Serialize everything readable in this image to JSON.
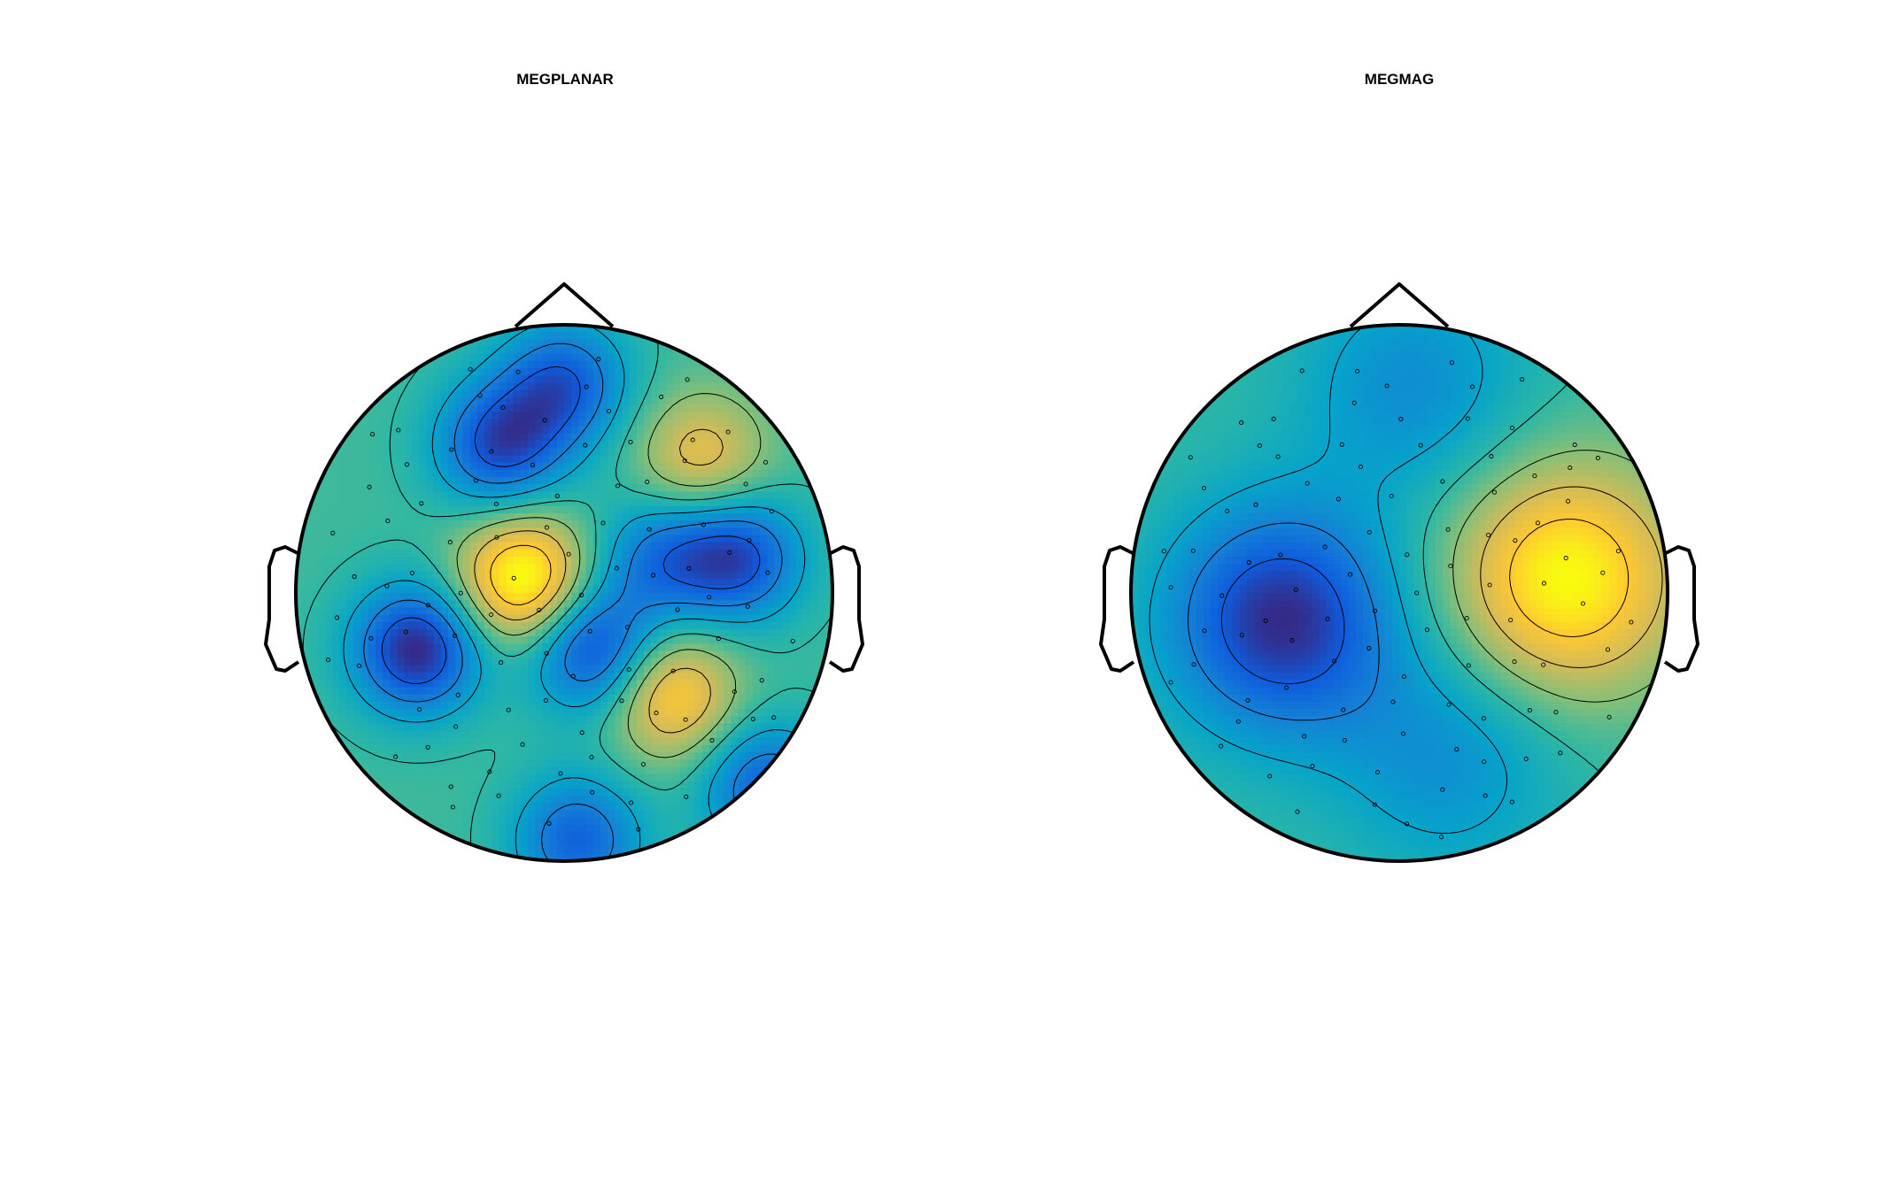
{
  "figure": {
    "panels": [
      "MEGPLANAR",
      "MEGMAG"
    ]
  },
  "colors": {
    "colormap": [
      "#352a87",
      "#0f5cdd",
      "#1481d6",
      "#06a4ca",
      "#2eb7a4",
      "#87bf77",
      "#d1bb59",
      "#fec832",
      "#f9fb0e"
    ],
    "outline": "#000000",
    "contour": "#000000"
  },
  "chart_data": [
    {
      "type": "heatmap",
      "subtype": "topographic-head-map",
      "title": "MEGPLANAR",
      "grid": false,
      "legend": "none",
      "markers": "sensor-dots",
      "features": [
        {
          "desc": "central-left vertical maximum",
          "x": -0.15,
          "y": 0.05,
          "value": 1.0
        },
        {
          "desc": "right-lower-central maximum",
          "x": 0.4,
          "y": -0.38,
          "value": 0.72
        },
        {
          "desc": "right-upper weak positive",
          "x": 0.51,
          "y": 0.5,
          "value": 0.55
        },
        {
          "desc": "left temporal minimum",
          "x": -0.55,
          "y": -0.21,
          "value": -1.0
        },
        {
          "desc": "central minimum",
          "x": 0.11,
          "y": -0.21,
          "value": -0.85
        },
        {
          "desc": "frontal-left minimum",
          "x": -0.24,
          "y": 0.55,
          "value": -0.82
        },
        {
          "desc": "frontal minimum",
          "x": 0.0,
          "y": 0.78,
          "value": -0.72
        },
        {
          "desc": "right minimum",
          "x": 0.65,
          "y": 0.13,
          "value": -0.8
        },
        {
          "desc": "right-central minimum",
          "x": 0.36,
          "y": 0.13,
          "value": -0.55
        },
        {
          "desc": "occipital minimum",
          "x": 0.05,
          "y": -0.92,
          "value": -0.7
        },
        {
          "desc": "right-posterior minimum",
          "x": 0.75,
          "y": -0.72,
          "value": -0.7
        }
      ]
    },
    {
      "type": "heatmap",
      "subtype": "topographic-head-map",
      "title": "MEGMAG",
      "grid": false,
      "legend": "none",
      "markers": "sensor-dots",
      "features": [
        {
          "desc": "right hemisphere maximum",
          "x": 0.62,
          "y": 0.05,
          "value": 1.0
        },
        {
          "desc": "left hemisphere minimum",
          "x": -0.44,
          "y": -0.1,
          "value": -1.0
        },
        {
          "desc": "frontal minimum",
          "x": 0.05,
          "y": 0.77,
          "value": -0.42
        },
        {
          "desc": "posterior minimum",
          "x": 0.18,
          "y": -0.62,
          "value": -0.4
        }
      ]
    }
  ]
}
